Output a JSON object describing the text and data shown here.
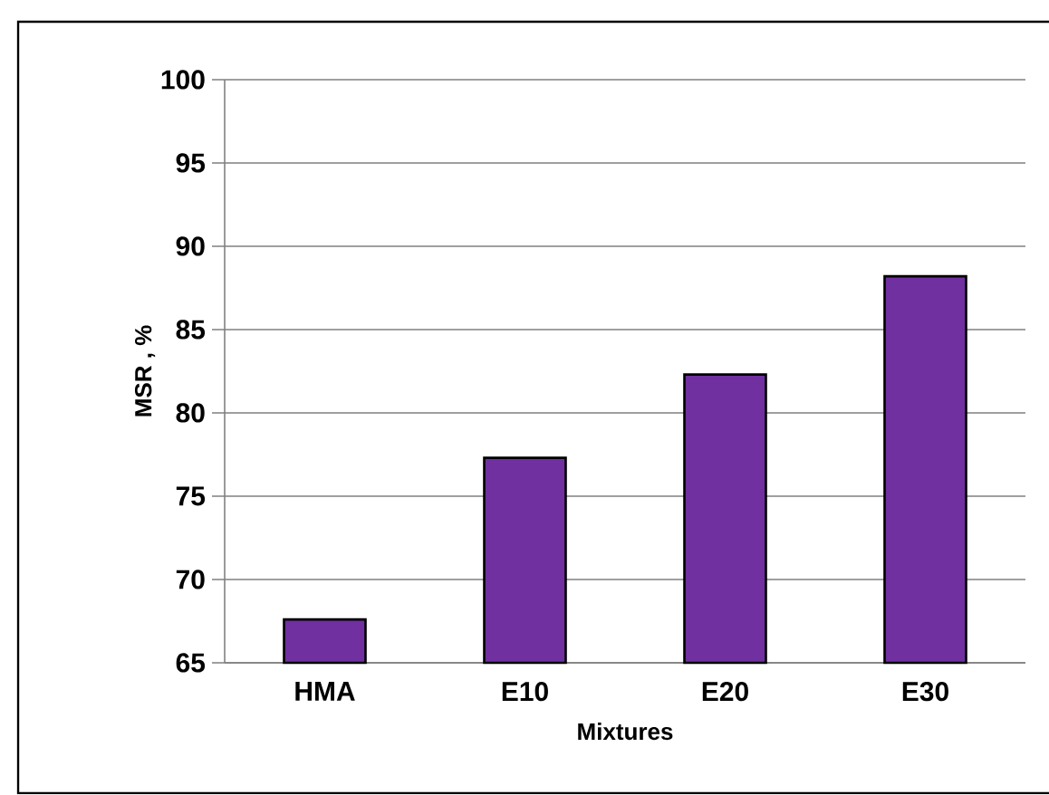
{
  "chart_data": {
    "type": "bar",
    "xlabel": "Mixtures",
    "ylabel": "MSR , %",
    "categories": [
      "HMA",
      "E10",
      "E20",
      "E30"
    ],
    "values": [
      67.6,
      77.3,
      82.3,
      88.2
    ],
    "color": "#7030a0",
    "ylim": [
      65,
      100
    ],
    "yticks": [
      65,
      70,
      75,
      80,
      85,
      90,
      95,
      100
    ],
    "grid": "y"
  }
}
